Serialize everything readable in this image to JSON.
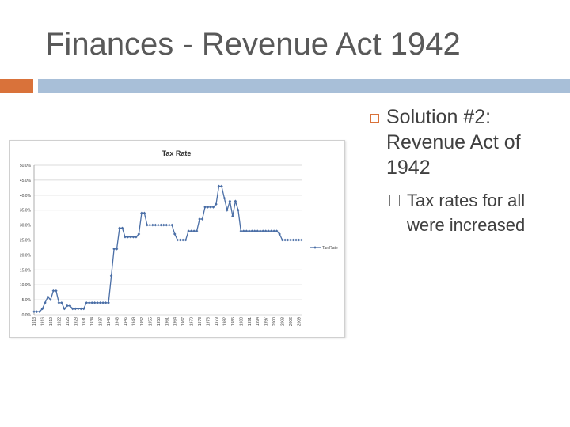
{
  "slide": {
    "title": "Finances - Revenue Act 1942",
    "bullet_main": "Solution #2: Revenue Act of 1942",
    "bullet_sub": "Tax rates for all were increased"
  },
  "colors": {
    "accent_orange": "#d9723a",
    "accent_blue": "#a8bfd8",
    "series": "#4a6ea6"
  },
  "chart_data": {
    "type": "line",
    "title": "Tax Rate",
    "ylim": [
      0,
      0.5
    ],
    "yticks": [
      "0.0%",
      "5.0%",
      "10.0%",
      "15.0%",
      "20.0%",
      "25.0%",
      "30.0%",
      "35.0%",
      "40.0%",
      "45.0%",
      "50.0%"
    ],
    "xticks": [
      "1913",
      "1916",
      "1919",
      "1922",
      "1925",
      "1928",
      "1931",
      "1934",
      "1937",
      "1940",
      "1943",
      "1946",
      "1949",
      "1952",
      "1955",
      "1958",
      "1961",
      "1964",
      "1967",
      "1970",
      "1973",
      "1976",
      "1979",
      "1982",
      "1985",
      "1988",
      "1991",
      "1994",
      "1997",
      "2000",
      "2003",
      "2006",
      "2009"
    ],
    "grid": true,
    "legend_position": "right",
    "series": [
      {
        "name": "Tax Rate",
        "x": [
          1913,
          1914,
          1915,
          1916,
          1917,
          1918,
          1919,
          1920,
          1921,
          1922,
          1923,
          1924,
          1925,
          1926,
          1927,
          1928,
          1929,
          1930,
          1931,
          1932,
          1933,
          1934,
          1935,
          1936,
          1937,
          1938,
          1939,
          1940,
          1941,
          1942,
          1943,
          1944,
          1945,
          1946,
          1947,
          1948,
          1949,
          1950,
          1951,
          1952,
          1953,
          1954,
          1955,
          1956,
          1957,
          1958,
          1959,
          1960,
          1961,
          1962,
          1963,
          1964,
          1965,
          1966,
          1967,
          1968,
          1969,
          1970,
          1971,
          1972,
          1973,
          1974,
          1975,
          1976,
          1977,
          1978,
          1979,
          1980,
          1981,
          1982,
          1983,
          1984,
          1985,
          1986,
          1987,
          1988,
          1989,
          1990,
          1991,
          1992,
          1993,
          1994,
          1995,
          1996,
          1997,
          1998,
          1999,
          2000,
          2001,
          2002,
          2003,
          2004,
          2005,
          2006,
          2007,
          2008,
          2009,
          2010
        ],
        "y": [
          0.01,
          0.01,
          0.01,
          0.02,
          0.04,
          0.06,
          0.05,
          0.08,
          0.08,
          0.04,
          0.04,
          0.02,
          0.03,
          0.03,
          0.02,
          0.02,
          0.02,
          0.02,
          0.02,
          0.04,
          0.04,
          0.04,
          0.04,
          0.04,
          0.04,
          0.04,
          0.04,
          0.04,
          0.13,
          0.22,
          0.22,
          0.29,
          0.29,
          0.26,
          0.26,
          0.26,
          0.26,
          0.26,
          0.27,
          0.34,
          0.34,
          0.3,
          0.3,
          0.3,
          0.3,
          0.3,
          0.3,
          0.3,
          0.3,
          0.3,
          0.3,
          0.27,
          0.25,
          0.25,
          0.25,
          0.25,
          0.28,
          0.28,
          0.28,
          0.28,
          0.32,
          0.32,
          0.36,
          0.36,
          0.36,
          0.36,
          0.37,
          0.43,
          0.43,
          0.39,
          0.35,
          0.38,
          0.33,
          0.38,
          0.35,
          0.28,
          0.28,
          0.28,
          0.28,
          0.28,
          0.28,
          0.28,
          0.28,
          0.28,
          0.28,
          0.28,
          0.28,
          0.28,
          0.28,
          0.27,
          0.25,
          0.25,
          0.25,
          0.25,
          0.25,
          0.25,
          0.25,
          0.25
        ]
      }
    ]
  }
}
